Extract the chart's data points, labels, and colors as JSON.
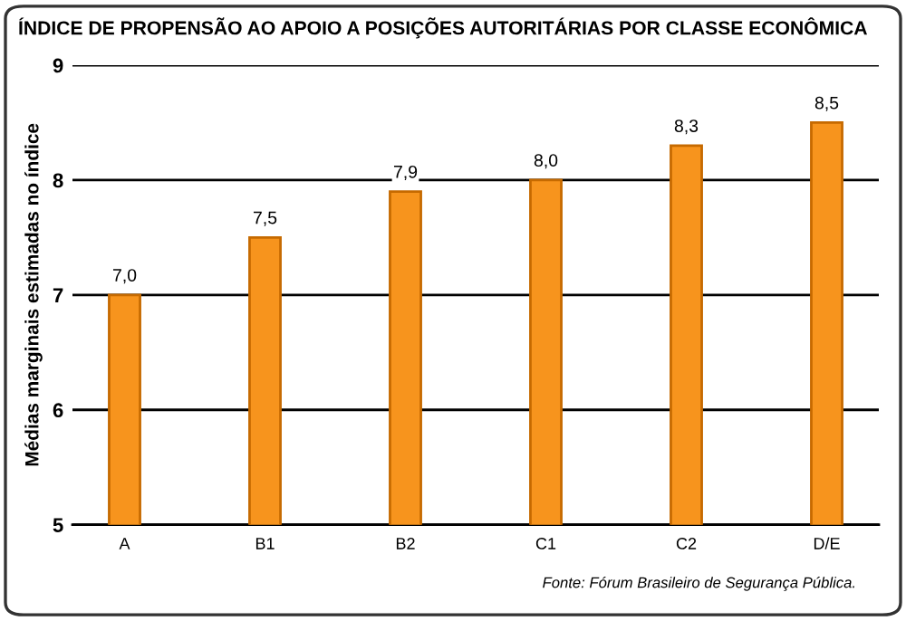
{
  "chart_data": {
    "type": "bar",
    "title": "ÍNDICE DE PROPENSÃO AO APOIO A POSIÇÕES AUTORITÁRIAS POR CLASSE ECONÔMICA",
    "ylabel": "Médias marginais estimadas no índice",
    "categories": [
      "A",
      "B1",
      "B2",
      "C1",
      "C2",
      "D/E"
    ],
    "values": [
      7.0,
      7.5,
      7.9,
      8.0,
      8.3,
      8.5
    ],
    "value_labels": [
      "7,0",
      "7,5",
      "7,9",
      "8,0",
      "8,3",
      "8,5"
    ],
    "color": "#f7941d",
    "ylim": [
      5,
      9
    ],
    "yticks": [
      5,
      6,
      7,
      8,
      9
    ],
    "grid": "y",
    "legend": false,
    "annotations": [
      "Fonte: Fórum Brasileiro de Segurança Pública."
    ]
  }
}
